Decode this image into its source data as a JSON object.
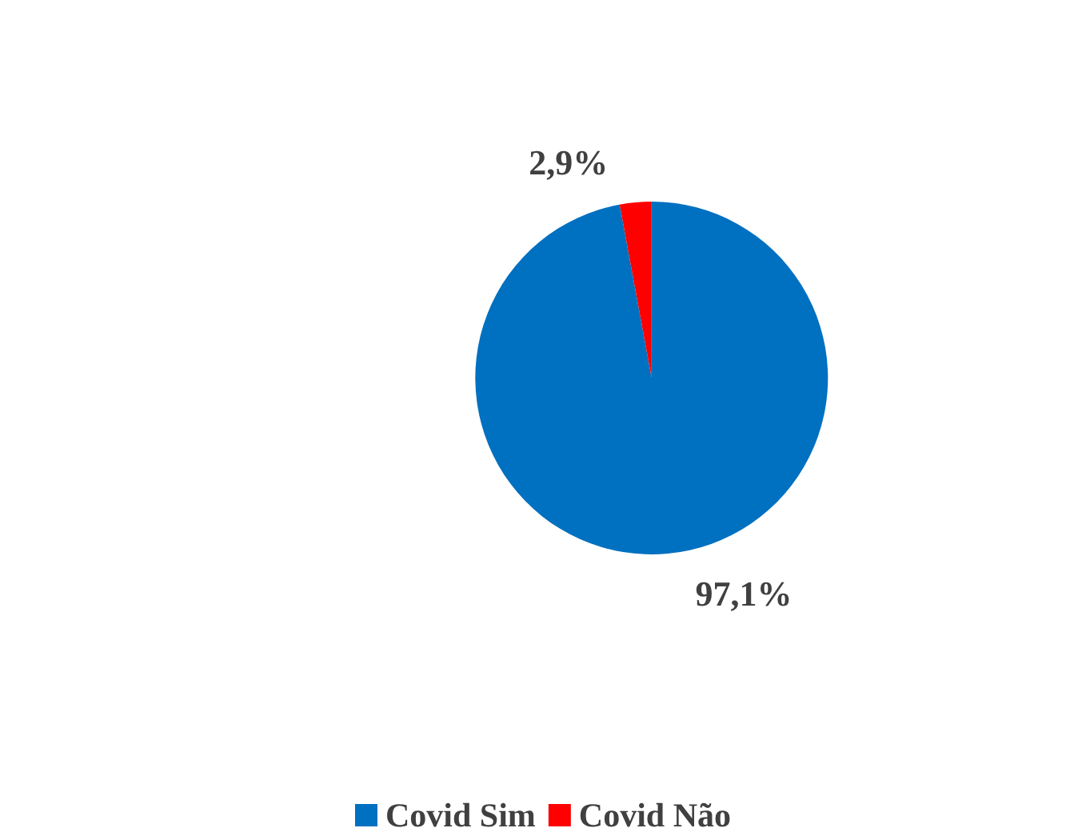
{
  "chart_data": {
    "type": "pie",
    "categories": [
      "Covid Sim",
      "Covid Não"
    ],
    "values": [
      97.1,
      2.9
    ],
    "colors": [
      "#0070c0",
      "#ff0000"
    ],
    "value_labels": [
      "97,1%",
      "2,9%"
    ],
    "legend": "bottom"
  }
}
